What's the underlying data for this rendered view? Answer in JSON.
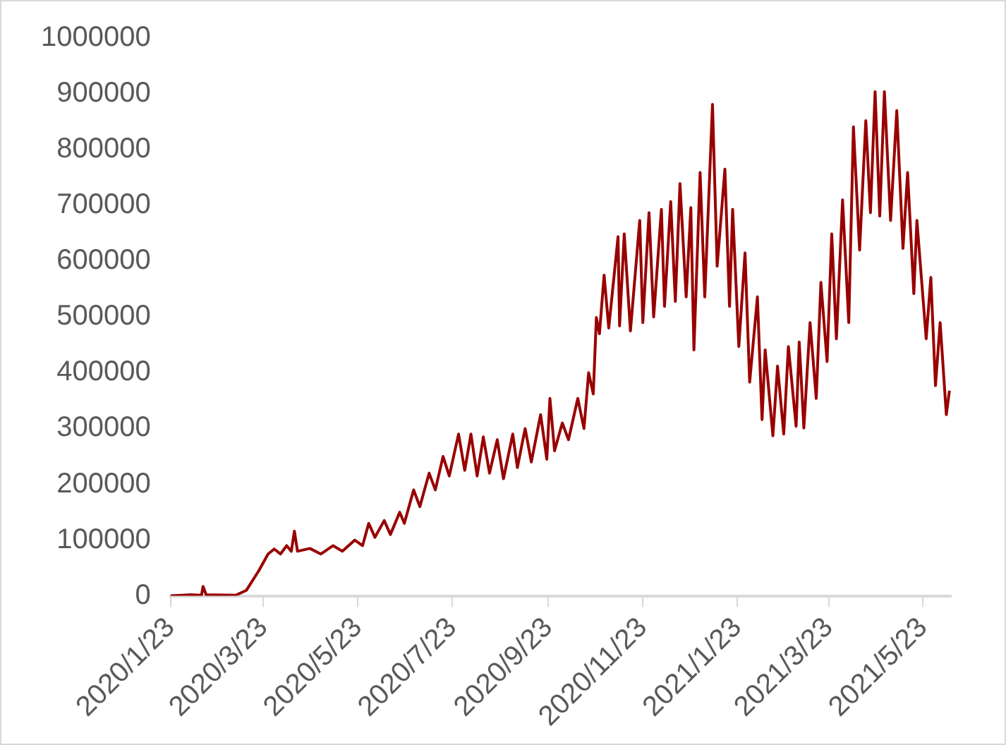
{
  "chart_data": {
    "type": "line",
    "x": [
      "2020-01-23",
      "2020-02-05",
      "2020-02-12",
      "2020-02-13",
      "2020-02-15",
      "2020-03-05",
      "2020-03-12",
      "2020-03-20",
      "2020-03-26",
      "2020-03-30",
      "2020-04-03",
      "2020-04-07",
      "2020-04-10",
      "2020-04-12",
      "2020-04-14",
      "2020-04-22",
      "2020-04-29",
      "2020-05-07",
      "2020-05-13",
      "2020-05-21",
      "2020-05-26",
      "2020-05-30",
      "2020-06-03",
      "2020-06-09",
      "2020-06-13",
      "2020-06-19",
      "2020-06-22",
      "2020-06-28",
      "2020-07-02",
      "2020-07-08",
      "2020-07-12",
      "2020-07-17",
      "2020-07-21",
      "2020-07-27",
      "2020-07-31",
      "2020-08-04",
      "2020-08-08",
      "2020-08-12",
      "2020-08-16",
      "2020-08-21",
      "2020-08-25",
      "2020-08-31",
      "2020-09-03",
      "2020-09-08",
      "2020-09-12",
      "2020-09-18",
      "2020-09-22",
      "2020-09-24",
      "2020-09-27",
      "2020-10-02",
      "2020-10-06",
      "2020-10-12",
      "2020-10-16",
      "2020-10-19",
      "2020-10-22",
      "2020-10-24",
      "2020-10-26",
      "2020-10-29",
      "2020-11-01",
      "2020-11-07",
      "2020-11-08",
      "2020-11-11",
      "2020-11-15",
      "2020-11-21",
      "2020-11-23",
      "2020-11-27",
      "2020-11-30",
      "2020-12-05",
      "2020-12-07",
      "2020-12-11",
      "2020-12-14",
      "2020-12-17",
      "2020-12-21",
      "2020-12-24",
      "2020-12-26",
      "2020-12-30",
      "2021-01-02",
      "2021-01-07",
      "2021-01-10",
      "2021-01-15",
      "2021-01-18",
      "2021-01-20",
      "2021-01-24",
      "2021-01-28",
      "2021-01-31",
      "2021-02-05",
      "2021-02-08",
      "2021-02-10",
      "2021-02-15",
      "2021-02-18",
      "2021-02-22",
      "2021-02-25",
      "2021-03-02",
      "2021-03-04",
      "2021-03-07",
      "2021-03-11",
      "2021-03-15",
      "2021-03-18",
      "2021-03-22",
      "2021-03-25",
      "2021-03-28",
      "2021-04-01",
      "2021-04-05",
      "2021-04-08",
      "2021-04-12",
      "2021-04-16",
      "2021-04-19",
      "2021-04-22",
      "2021-04-25",
      "2021-04-28",
      "2021-05-02",
      "2021-05-06",
      "2021-05-10",
      "2021-05-13",
      "2021-05-17",
      "2021-05-19",
      "2021-05-25",
      "2021-05-28",
      "2021-05-31",
      "2021-06-03",
      "2021-06-07",
      "2021-06-09"
    ],
    "series": [
      {
        "color": "#990000",
        "values": [
          0,
          2000,
          1000,
          17000,
          2000,
          1000,
          10000,
          45000,
          75000,
          84000,
          75000,
          90000,
          80000,
          116000,
          80000,
          85000,
          75000,
          90000,
          80000,
          100000,
          90000,
          130000,
          105000,
          135000,
          110000,
          150000,
          130000,
          190000,
          160000,
          220000,
          190000,
          250000,
          215000,
          290000,
          225000,
          290000,
          215000,
          285000,
          220000,
          280000,
          210000,
          290000,
          230000,
          300000,
          240000,
          325000,
          245000,
          354000,
          260000,
          310000,
          280000,
          354000,
          300000,
          400000,
          362000,
          499000,
          470000,
          575000,
          480000,
          644000,
          484000,
          649000,
          475000,
          673000,
          490000,
          687000,
          500000,
          693000,
          519000,
          707000,
          528000,
          739000,
          536000,
          696000,
          441000,
          759000,
          536000,
          881000,
          591000,
          765000,
          519000,
          693000,
          447000,
          615000,
          383000,
          536000,
          316000,
          441000,
          287000,
          412000,
          290000,
          447000,
          304000,
          455000,
          301000,
          490000,
          354000,
          562000,
          420000,
          649000,
          461000,
          710000,
          490000,
          841000,
          620000,
          852000,
          687000,
          904000,
          681000,
          904000,
          673000,
          870000,
          623000,
          759000,
          542000,
          673000,
          461000,
          571000,
          377000,
          490000,
          325000,
          368000
        ]
      }
    ],
    "xlim": [
      "2020-01-23",
      "2021-06-10"
    ],
    "xticks": [
      {
        "value": "2020-01-23",
        "label": "2020/1/23"
      },
      {
        "value": "2020-03-23",
        "label": "2020/3/23"
      },
      {
        "value": "2020-05-23",
        "label": "2020/5/23"
      },
      {
        "value": "2020-07-23",
        "label": "2020/7/23"
      },
      {
        "value": "2020-09-23",
        "label": "2020/9/23"
      },
      {
        "value": "2020-11-23",
        "label": "2020/11/23"
      },
      {
        "value": "2021-01-23",
        "label": "2021/1/23"
      },
      {
        "value": "2021-03-23",
        "label": "2021/3/23"
      },
      {
        "value": "2021-05-23",
        "label": "2021/5/23"
      }
    ],
    "ylim": [
      0,
      1000000
    ],
    "yticks": [
      0,
      100000,
      200000,
      300000,
      400000,
      500000,
      600000,
      700000,
      800000,
      900000,
      1000000
    ],
    "grid": false,
    "legend": false,
    "marker": "none",
    "line_style": "solid"
  }
}
